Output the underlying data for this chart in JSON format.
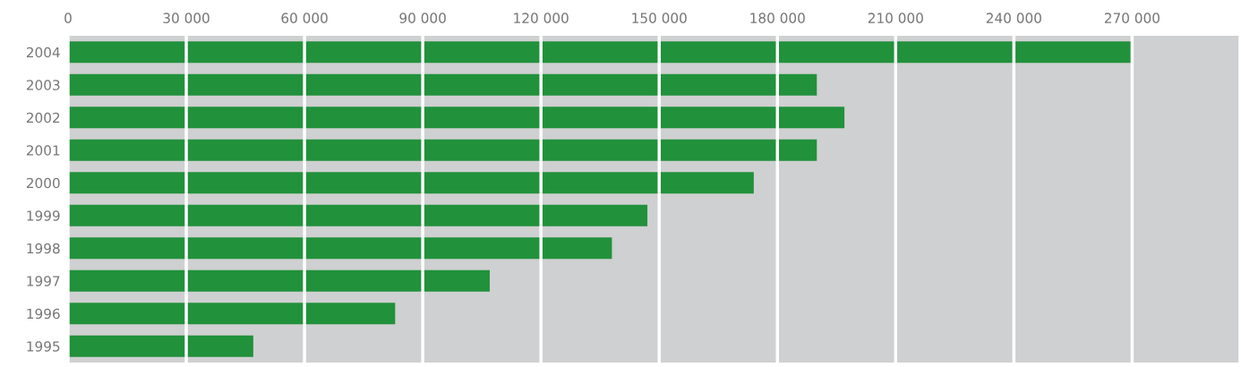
{
  "chart_data": {
    "type": "bar",
    "orientation": "horizontal",
    "categories": [
      "2004",
      "2003",
      "2002",
      "2001",
      "2000",
      "1999",
      "1998",
      "1997",
      "1996",
      "1995"
    ],
    "values": [
      270000,
      190000,
      197000,
      190000,
      174000,
      147000,
      138000,
      107000,
      83000,
      47000
    ],
    "color": "#21913b",
    "xlim": [
      0,
      297000
    ],
    "xticks": [
      0,
      {
        "value": 30000,
        "label": "30 000"
      },
      {
        "value": 60000,
        "label": "60 000"
      },
      {
        "value": 90000,
        "label": "90 000"
      },
      {
        "value": 120000,
        "label": "120 000"
      },
      {
        "value": 150000,
        "label": "150 000"
      },
      {
        "value": 180000,
        "label": "180 000"
      },
      {
        "value": 210000,
        "label": "210 000"
      },
      {
        "value": 240000,
        "label": "240 000"
      },
      {
        "value": 270000,
        "label": "270 000"
      }
    ],
    "grid": "x"
  }
}
